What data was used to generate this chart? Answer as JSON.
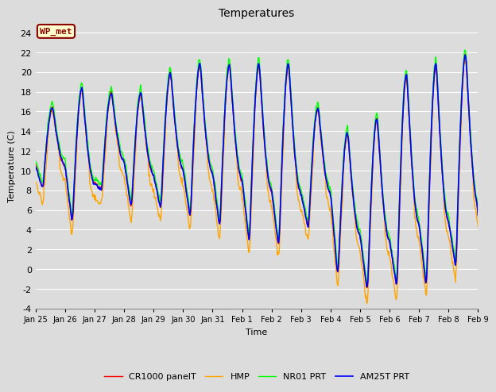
{
  "title": "Temperatures",
  "ylabel": "Temperature (C)",
  "xlabel": "Time",
  "ylim": [
    -4,
    25
  ],
  "background_color": "#dcdcdc",
  "plot_bg_color": "#dcdcdc",
  "grid_color": "white",
  "annotation_text": "WP_met",
  "annotation_bg": "#ffffcc",
  "annotation_border": "#8b0000",
  "annotation_text_color": "#8b0000",
  "series": [
    {
      "label": "CR1000 panelT",
      "color": "red",
      "lw": 1.0
    },
    {
      "label": "HMP",
      "color": "orange",
      "lw": 1.0
    },
    {
      "label": "NR01 PRT",
      "color": "lime",
      "lw": 1.0
    },
    {
      "label": "AM25T PRT",
      "color": "blue",
      "lw": 1.2
    }
  ],
  "xtick_labels": [
    "Jan 25",
    "Jan 26",
    "Jan 27",
    "Jan 28",
    "Jan 29",
    "Jan 30",
    "Jan 31",
    "Feb 1",
    "Feb 2",
    "Feb 3",
    "Feb 4",
    "Feb 5",
    "Feb 6",
    "Feb 7",
    "Feb 8",
    "Feb 9"
  ],
  "ytick_values": [
    -4,
    -2,
    0,
    2,
    4,
    6,
    8,
    10,
    12,
    14,
    16,
    18,
    20,
    22,
    24
  ]
}
